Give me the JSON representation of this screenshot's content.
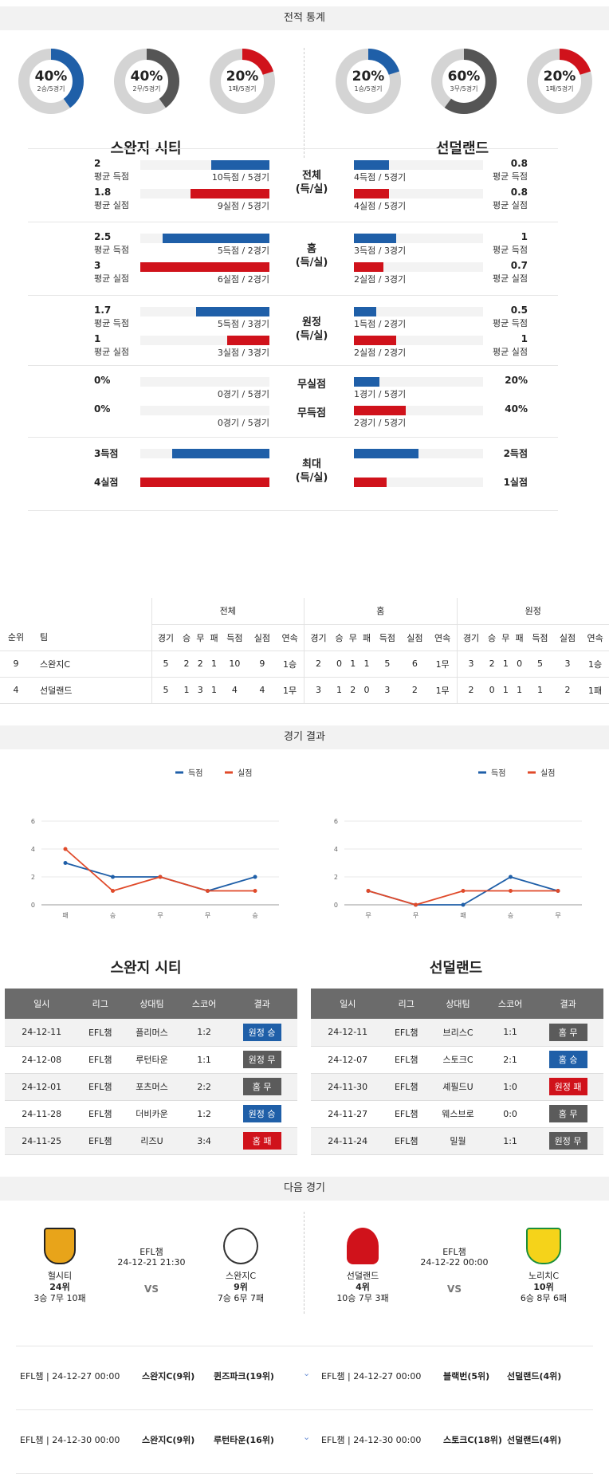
{
  "headers": {
    "stats": "전적 통계",
    "results": "경기 결과",
    "next": "다음 경기"
  },
  "teams": {
    "home": "스완지 시티",
    "away": "선덜랜드"
  },
  "donuts": [
    {
      "pct": "40%",
      "sub": "2승/5경기",
      "value": 0.4,
      "color": "#1f5fa8"
    },
    {
      "pct": "40%",
      "sub": "2무/5경기",
      "value": 0.4,
      "color": "#555555"
    },
    {
      "pct": "20%",
      "sub": "1패/5경기",
      "value": 0.2,
      "color": "#d0121b"
    },
    {
      "pct": "20%",
      "sub": "1승/5경기",
      "value": 0.2,
      "color": "#1f5fa8"
    },
    {
      "pct": "60%",
      "sub": "3무/5경기",
      "value": 0.6,
      "color": "#555555"
    },
    {
      "pct": "20%",
      "sub": "1패/5경기",
      "value": 0.2,
      "color": "#d0121b"
    }
  ],
  "stat_groups": [
    {
      "label": "전체\n(득/실)",
      "rows": [
        {
          "color": "blue",
          "l_num": "2",
          "l_lbl": "평균 득점",
          "l_frac": 0.45,
          "l_txt": "10득점 / 5경기",
          "r_num": "0.8",
          "r_lbl": "평균 득점",
          "r_frac": 0.27,
          "r_txt": "4득점 / 5경기"
        },
        {
          "color": "red",
          "l_num": "1.8",
          "l_lbl": "평균 실점",
          "l_frac": 0.61,
          "l_txt": "9실점 / 5경기",
          "r_num": "0.8",
          "r_lbl": "평균 실점",
          "r_frac": 0.27,
          "r_txt": "4실점 / 5경기"
        }
      ]
    },
    {
      "label": "홈\n(득/실)",
      "rows": [
        {
          "color": "blue",
          "l_num": "2.5",
          "l_lbl": "평균 득점",
          "l_frac": 0.83,
          "l_txt": "5득점 / 2경기",
          "r_num": "1",
          "r_lbl": "평균 득점",
          "r_frac": 0.33,
          "r_txt": "3득점 / 3경기"
        },
        {
          "color": "red",
          "l_num": "3",
          "l_lbl": "평균 실점",
          "l_frac": 1.0,
          "l_txt": "6실점 / 2경기",
          "r_num": "0.7",
          "r_lbl": "평균 실점",
          "r_frac": 0.23,
          "r_txt": "2실점 / 3경기"
        }
      ]
    },
    {
      "label": "원정\n(득/실)",
      "rows": [
        {
          "color": "blue",
          "l_num": "1.7",
          "l_lbl": "평균 득점",
          "l_frac": 0.57,
          "l_txt": "5득점 / 3경기",
          "r_num": "0.5",
          "r_lbl": "평균 득점",
          "r_frac": 0.17,
          "r_txt": "1득점 / 2경기"
        },
        {
          "color": "red",
          "l_num": "1",
          "l_lbl": "평균 실점",
          "l_frac": 0.33,
          "l_txt": "3실점 / 3경기",
          "r_num": "1",
          "r_lbl": "평균 실점",
          "r_frac": 0.33,
          "r_txt": "2실점 / 2경기"
        }
      ]
    },
    {
      "label": "",
      "rows": [
        {
          "color": "blue",
          "mid": "무실점",
          "l_num": "0%",
          "l_lbl": "",
          "l_frac": 0,
          "l_txt": "0경기 / 5경기",
          "r_num": "20%",
          "r_lbl": "",
          "r_frac": 0.2,
          "r_txt": "1경기 / 5경기"
        },
        {
          "color": "red",
          "mid": "무득점",
          "l_num": "0%",
          "l_lbl": "",
          "l_frac": 0,
          "l_txt": "0경기 / 5경기",
          "r_num": "40%",
          "r_lbl": "",
          "r_frac": 0.4,
          "r_txt": "2경기 / 5경기"
        }
      ]
    },
    {
      "label": "최대\n(득/실)",
      "rows": [
        {
          "color": "blue",
          "l_num": "3득점",
          "l_lbl": "",
          "l_frac": 0.75,
          "l_txt": "",
          "r_num": "2득점",
          "r_lbl": "",
          "r_frac": 0.5,
          "r_txt": ""
        },
        {
          "color": "red",
          "l_num": "4실점",
          "l_lbl": "",
          "l_frac": 1.0,
          "l_txt": "",
          "r_num": "1실점",
          "r_lbl": "",
          "r_frac": 0.25,
          "r_txt": ""
        }
      ]
    }
  ],
  "standings": {
    "groups": [
      "전체",
      "홈",
      "원정"
    ],
    "cols": [
      "순위",
      "팀",
      "경기",
      "승",
      "무",
      "패",
      "득점",
      "실점",
      "연속",
      "경기",
      "승",
      "무",
      "패",
      "득점",
      "실점",
      "연속",
      "경기",
      "승",
      "무",
      "패",
      "득점",
      "실점",
      "연속"
    ],
    "rows": [
      [
        "9",
        "스완지C",
        "5",
        "2",
        "2",
        "1",
        "10",
        "9",
        "1승",
        "2",
        "0",
        "1",
        "1",
        "5",
        "6",
        "1무",
        "3",
        "2",
        "1",
        "0",
        "5",
        "3",
        "1승"
      ],
      [
        "4",
        "선덜랜드",
        "5",
        "1",
        "3",
        "1",
        "4",
        "4",
        "1무",
        "3",
        "1",
        "2",
        "0",
        "3",
        "2",
        "1무",
        "2",
        "0",
        "1",
        "1",
        "1",
        "2",
        "1패"
      ]
    ]
  },
  "legend": {
    "scored": "득점",
    "conceded": "실점"
  },
  "chart_data": [
    {
      "type": "line",
      "categories": [
        "패",
        "승",
        "무",
        "무",
        "승"
      ],
      "ylim": [
        0,
        6
      ],
      "yticks": [
        0,
        2,
        4,
        6
      ],
      "series": [
        {
          "name": "득점",
          "color": "#1f5fa8",
          "values": [
            3,
            2,
            2,
            1,
            2
          ]
        },
        {
          "name": "실점",
          "color": "#e04a2a",
          "values": [
            4,
            1,
            2,
            1,
            1
          ]
        }
      ]
    },
    {
      "type": "line",
      "categories": [
        "무",
        "무",
        "패",
        "승",
        "무"
      ],
      "ylim": [
        0,
        6
      ],
      "yticks": [
        0,
        2,
        4,
        6
      ],
      "series": [
        {
          "name": "득점",
          "color": "#1f5fa8",
          "values": [
            1,
            0,
            0,
            2,
            1
          ]
        },
        {
          "name": "실점",
          "color": "#e04a2a",
          "values": [
            1,
            0,
            1,
            1,
            1
          ]
        }
      ]
    }
  ],
  "results_cols": [
    "일시",
    "리그",
    "상대팀",
    "스코어",
    "결과"
  ],
  "results": [
    [
      [
        "24-12-11",
        "EFL챔",
        "플리머스",
        "1:2",
        "원정 승",
        "b"
      ],
      [
        "24-12-08",
        "EFL챔",
        "루턴타운",
        "1:1",
        "원정 무",
        "g"
      ],
      [
        "24-12-01",
        "EFL챔",
        "포츠머스",
        "2:2",
        "홈 무",
        "g"
      ],
      [
        "24-11-28",
        "EFL챔",
        "더비카운",
        "1:2",
        "원정 승",
        "b"
      ],
      [
        "24-11-25",
        "EFL챔",
        "리즈U",
        "3:4",
        "홈 패",
        "r"
      ]
    ],
    [
      [
        "24-12-11",
        "EFL챔",
        "브리스C",
        "1:1",
        "홈 무",
        "g"
      ],
      [
        "24-12-07",
        "EFL챔",
        "스토크C",
        "2:1",
        "홈 승",
        "b"
      ],
      [
        "24-11-30",
        "EFL챔",
        "셰필드U",
        "1:0",
        "원정 패",
        "r"
      ],
      [
        "24-11-27",
        "EFL챔",
        "웨스브로",
        "0:0",
        "홈 무",
        "g"
      ],
      [
        "24-11-24",
        "EFL챔",
        "밀월",
        "1:1",
        "원정 무",
        "g"
      ]
    ]
  ],
  "next": [
    {
      "league": "EFL챔",
      "datetime": "24-12-21 21:30",
      "vs": "VS",
      "home": {
        "name": "헐시티",
        "rank": "24위",
        "record": "3승 7무 10패"
      },
      "away": {
        "name": "스완지C",
        "rank": "9위",
        "record": "7승 6무 7패"
      }
    },
    {
      "league": "EFL챔",
      "datetime": "24-12-22 00:00",
      "vs": "VS",
      "home": {
        "name": "선덜랜드",
        "rank": "4위",
        "record": "10승 7무 3패"
      },
      "away": {
        "name": "노리치C",
        "rank": "10위",
        "record": "6승 8무 6패"
      }
    }
  ],
  "upcoming": [
    {
      "l": "EFL챔 | 24-12-27 00:00",
      "lh": "스완지C(9위)",
      "la": "퀸즈파크(19위)",
      "r": "EFL챔 | 24-12-27 00:00",
      "rh": "블랙번(5위)",
      "ra": "선덜랜드(4위)"
    },
    {
      "l": "EFL챔 | 24-12-30 00:00",
      "lh": "스완지C(9위)",
      "la": "루턴타운(16위)",
      "r": "EFL챔 | 24-12-30 00:00",
      "rh": "스토크C(18위)",
      "ra": "선덜랜드(4위)"
    }
  ]
}
